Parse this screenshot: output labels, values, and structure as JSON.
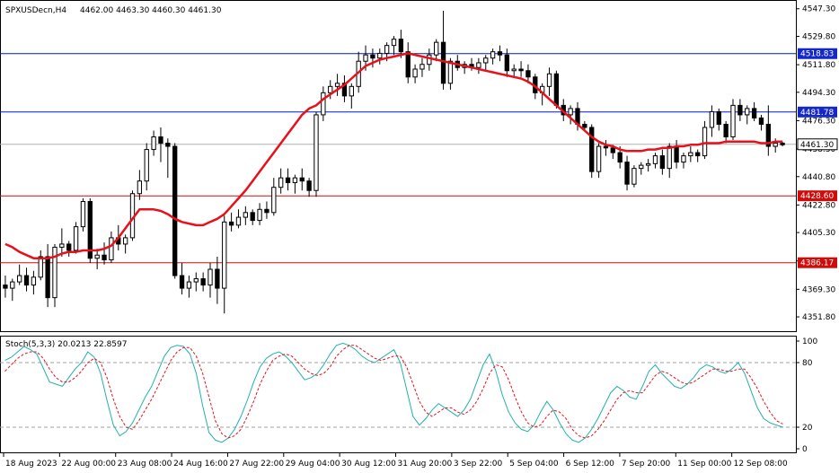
{
  "header": {
    "symbol": "SPXUSDecn,H4",
    "ohlc": "4462.00 4463.30 4460.30 4461.30"
  },
  "stoch_header": "Stoch(5,3,3) 20.0213 22.8597",
  "colors": {
    "background": "#ffffff",
    "candle": "#000000",
    "ma": "#e8101a",
    "blue_line": "#0019c8",
    "red_line": "#d10a0a",
    "current_price_line": "#b0b0b0",
    "stoch_main": "#20b2aa",
    "stoch_signal": "#e8101a",
    "blue_label_bg": "#1428c8",
    "red_label_bg": "#d10a0a"
  },
  "chart_data": [
    {
      "type": "candlestick",
      "title": "SPXUSDecn,H4",
      "ylim": [
        4345,
        4550
      ],
      "y_ticks": [
        "4547.30",
        "4529.80",
        "4511.80",
        "4494.30",
        "4476.30",
        "4458.30",
        "4440.80",
        "4422.80",
        "4405.30",
        "4387.30",
        "4369.30",
        "4351.80"
      ],
      "x_ticks": [
        "18 Aug 2023",
        "22 Aug 00:00",
        "23 Aug 08:00",
        "24 Aug 16:00",
        "27 Aug 22:00",
        "29 Aug 04:00",
        "30 Aug 12:00",
        "31 Aug 20:00",
        "3 Sep 22:00",
        "5 Sep 04:00",
        "6 Sep 12:00",
        "7 Sep 20:00",
        "11 Sep 00:00",
        "12 Sep 08:00"
      ],
      "horizontal_levels": [
        {
          "value": 4518.83,
          "label": "4518.83",
          "color": "blue"
        },
        {
          "value": 4481.78,
          "label": "4481.78",
          "color": "blue"
        },
        {
          "value": 4428.6,
          "label": "4428.60",
          "color": "red"
        },
        {
          "value": 4386.17,
          "label": "4386.17",
          "color": "red"
        }
      ],
      "current_price": {
        "value": 4461.3,
        "label": "4461.30"
      },
      "candles": [
        [
          4372,
          4378,
          4364,
          4370
        ],
        [
          4370,
          4376,
          4362,
          4374
        ],
        [
          4374,
          4385,
          4372,
          4378
        ],
        [
          4378,
          4383,
          4368,
          4372
        ],
        [
          4372,
          4381,
          4366,
          4377
        ],
        [
          4377,
          4394,
          4375,
          4390
        ],
        [
          4390,
          4398,
          4358,
          4364
        ],
        [
          4364,
          4398,
          4358,
          4396
        ],
        [
          4396,
          4408,
          4390,
          4398
        ],
        [
          4398,
          4400,
          4390,
          4394
        ],
        [
          4394,
          4412,
          4392,
          4409
        ],
        [
          4409,
          4427,
          4406,
          4425
        ],
        [
          4425,
          4427,
          4386,
          4389
        ],
        [
          4389,
          4395,
          4382,
          4391
        ],
        [
          4391,
          4399,
          4385,
          4388
        ],
        [
          4388,
          4406,
          4386,
          4402
        ],
        [
          4402,
          4410,
          4394,
          4398
        ],
        [
          4398,
          4404,
          4392,
          4402
        ],
        [
          4402,
          4432,
          4400,
          4430
        ],
        [
          4430,
          4445,
          4426,
          4438
        ],
        [
          4438,
          4462,
          4432,
          4458
        ],
        [
          4458,
          4470,
          4454,
          4466
        ],
        [
          4466,
          4472,
          4450,
          4462
        ],
        [
          4462,
          4465,
          4440,
          4460
        ],
        [
          4460,
          4462,
          4376,
          4378
        ],
        [
          4378,
          4386,
          4366,
          4370
        ],
        [
          4370,
          4378,
          4364,
          4374
        ],
        [
          4374,
          4380,
          4368,
          4376
        ],
        [
          4376,
          4380,
          4368,
          4372
        ],
        [
          4372,
          4386,
          4364,
          4382
        ],
        [
          4382,
          4390,
          4360,
          4370
        ],
        [
          4370,
          4416,
          4354,
          4412
        ],
        [
          4412,
          4418,
          4406,
          4410
        ],
        [
          4410,
          4420,
          4408,
          4415
        ],
        [
          4415,
          4422,
          4410,
          4418
        ],
        [
          4418,
          4420,
          4410,
          4413
        ],
        [
          4413,
          4424,
          4410,
          4420
        ],
        [
          4420,
          4425,
          4414,
          4418
        ],
        [
          4418,
          4440,
          4416,
          4434
        ],
        [
          4434,
          4446,
          4430,
          4440
        ],
        [
          4440,
          4446,
          4432,
          4437
        ],
        [
          4437,
          4442,
          4430,
          4440
        ],
        [
          4440,
          4446,
          4432,
          4438
        ],
        [
          4438,
          4440,
          4428,
          4432
        ],
        [
          4432,
          4482,
          4428,
          4480
        ],
        [
          4480,
          4498,
          4476,
          4494
        ],
        [
          4494,
          4502,
          4490,
          4498
        ],
        [
          4498,
          4506,
          4492,
          4500
        ],
        [
          4500,
          4505,
          4488,
          4492
        ],
        [
          4492,
          4500,
          4484,
          4498
        ],
        [
          4498,
          4520,
          4494,
          4514
        ],
        [
          4514,
          4524,
          4508,
          4518
        ],
        [
          4518,
          4522,
          4510,
          4516
        ],
        [
          4516,
          4522,
          4512,
          4519
        ],
        [
          4519,
          4526,
          4514,
          4524
        ],
        [
          4524,
          4530,
          4518,
          4528
        ],
        [
          4528,
          4534,
          4516,
          4520
        ],
        [
          4520,
          4526,
          4500,
          4504
        ],
        [
          4504,
          4512,
          4500,
          4509
        ],
        [
          4509,
          4516,
          4504,
          4512
        ],
        [
          4512,
          4522,
          4508,
          4518
        ],
        [
          4518,
          4528,
          4514,
          4526
        ],
        [
          4526,
          4546,
          4496,
          4500
        ],
        [
          4500,
          4516,
          4496,
          4514
        ],
        [
          4514,
          4518,
          4508,
          4510
        ],
        [
          4510,
          4514,
          4506,
          4512
        ],
        [
          4512,
          4516,
          4508,
          4510
        ],
        [
          4510,
          4516,
          4506,
          4513
        ],
        [
          4513,
          4518,
          4508,
          4516
        ],
        [
          4516,
          4522,
          4512,
          4520
        ],
        [
          4520,
          4524,
          4514,
          4518
        ],
        [
          4518,
          4522,
          4504,
          4508
        ],
        [
          4508,
          4512,
          4504,
          4509
        ],
        [
          4509,
          4514,
          4504,
          4508
        ],
        [
          4508,
          4512,
          4500,
          4504
        ],
        [
          4504,
          4506,
          4490,
          4494
        ],
        [
          4494,
          4500,
          4486,
          4498
        ],
        [
          4498,
          4510,
          4492,
          4506
        ],
        [
          4506,
          4508,
          4484,
          4486
        ],
        [
          4486,
          4490,
          4476,
          4480
        ],
        [
          4480,
          4486,
          4474,
          4484
        ],
        [
          4484,
          4488,
          4470,
          4474
        ],
        [
          4474,
          4476,
          4470,
          4472
        ],
        [
          4472,
          4474,
          4440,
          4444
        ],
        [
          4444,
          4462,
          4440,
          4460
        ],
        [
          4460,
          4464,
          4454,
          4459
        ],
        [
          4459,
          4461,
          4452,
          4456
        ],
        [
          4456,
          4460,
          4446,
          4450
        ],
        [
          4450,
          4454,
          4432,
          4436
        ],
        [
          4436,
          4448,
          4434,
          4446
        ],
        [
          4446,
          4450,
          4442,
          4448
        ],
        [
          4448,
          4452,
          4444,
          4449
        ],
        [
          4449,
          4456,
          4446,
          4454
        ],
        [
          4454,
          4458,
          4442,
          4446
        ],
        [
          4446,
          4462,
          4440,
          4460
        ],
        [
          4460,
          4464,
          4446,
          4450
        ],
        [
          4450,
          4456,
          4446,
          4454
        ],
        [
          4454,
          4460,
          4450,
          4456
        ],
        [
          4456,
          4458,
          4450,
          4454
        ],
        [
          4454,
          4476,
          4452,
          4472
        ],
        [
          4472,
          4486,
          4466,
          4482
        ],
        [
          4482,
          4484,
          4470,
          4474
        ],
        [
          4474,
          4476,
          4462,
          4466
        ],
        [
          4466,
          4490,
          4464,
          4486
        ],
        [
          4486,
          4490,
          4476,
          4480
        ],
        [
          4480,
          4486,
          4474,
          4484
        ],
        [
          4484,
          4488,
          4476,
          4478
        ],
        [
          4478,
          4480,
          4470,
          4474
        ],
        [
          4474,
          4486,
          4454,
          4460
        ],
        [
          4460,
          4465,
          4456,
          4462
        ],
        [
          4462,
          4463,
          4460,
          4461
        ]
      ],
      "moving_average": [
        4398,
        4396,
        4393,
        4391,
        4389,
        4389,
        4389,
        4390,
        4392,
        4393,
        4393,
        4394,
        4394,
        4394,
        4395,
        4397,
        4402,
        4408,
        4414,
        4420,
        4420,
        4420,
        4419,
        4417,
        4414,
        4412,
        4411,
        4410,
        4410,
        4412,
        4414,
        4417,
        4422,
        4427,
        4432,
        4438,
        4444,
        4450,
        4456,
        4462,
        4468,
        4474,
        4480,
        4484,
        4486,
        4490,
        4493,
        4496,
        4499,
        4503,
        4507,
        4511,
        4513,
        4515,
        4516,
        4517,
        4518,
        4519,
        4518,
        4517,
        4516,
        4515,
        4514,
        4513,
        4512,
        4511,
        4510,
        4509,
        4508,
        4507,
        4506,
        4505,
        4504,
        4503,
        4501,
        4498,
        4494,
        4490,
        4486,
        4482,
        4478,
        4474,
        4470,
        4466,
        4463,
        4461,
        4460,
        4458,
        4457,
        4457,
        4457,
        4458,
        4458,
        4459,
        4459,
        4460,
        4460,
        4461,
        4461,
        4462,
        4462,
        4462,
        4463,
        4463,
        4463,
        4463,
        4463,
        4462,
        4462,
        4463,
        4463,
        4463
      ]
    },
    {
      "type": "line",
      "title": "Stoch(5,3,3) 20.0213 22.8597",
      "ylim": [
        0,
        100
      ],
      "y_ticks": [
        "100",
        "80",
        "20",
        "0"
      ],
      "levels": [
        80,
        20
      ],
      "series": [
        {
          "name": "main",
          "values": [
            82,
            85,
            90,
            95,
            92,
            88,
            75,
            62,
            60,
            58,
            66,
            74,
            80,
            90,
            85,
            70,
            45,
            22,
            12,
            16,
            24,
            36,
            48,
            58,
            72,
            86,
            94,
            96,
            95,
            88,
            70,
            40,
            15,
            8,
            6,
            10,
            18,
            30,
            45,
            62,
            76,
            84,
            88,
            90,
            86,
            80,
            72,
            64,
            66,
            70,
            78,
            88,
            96,
            98,
            96,
            92,
            86,
            82,
            80,
            84,
            88,
            92,
            80,
            55,
            30,
            22,
            28,
            36,
            42,
            38,
            34,
            30,
            36,
            46,
            62,
            78,
            88,
            72,
            50,
            34,
            24,
            18,
            16,
            22,
            34,
            44,
            36,
            24,
            14,
            8,
            6,
            10,
            18,
            28,
            40,
            52,
            58,
            54,
            48,
            46,
            58,
            72,
            78,
            70,
            64,
            58,
            56,
            60,
            66,
            74,
            78,
            76,
            72,
            70,
            74,
            80,
            70,
            54,
            38,
            28,
            24,
            22,
            20
          ]
        },
        {
          "name": "signal",
          "values": [
            72,
            78,
            84,
            88,
            90,
            90,
            84,
            74,
            66,
            62,
            62,
            66,
            72,
            80,
            84,
            80,
            66,
            46,
            30,
            20,
            18,
            26,
            36,
            46,
            58,
            70,
            82,
            90,
            94,
            94,
            86,
            70,
            48,
            26,
            14,
            10,
            12,
            18,
            30,
            44,
            60,
            72,
            82,
            86,
            88,
            86,
            80,
            74,
            70,
            68,
            70,
            76,
            86,
            92,
            96,
            96,
            92,
            88,
            84,
            82,
            84,
            86,
            86,
            76,
            60,
            44,
            34,
            30,
            34,
            38,
            38,
            34,
            32,
            36,
            44,
            56,
            70,
            78,
            76,
            64,
            48,
            34,
            24,
            20,
            22,
            30,
            36,
            34,
            28,
            18,
            12,
            10,
            12,
            18,
            26,
            36,
            46,
            52,
            54,
            52,
            52,
            60,
            68,
            72,
            70,
            66,
            62,
            60,
            62,
            66,
            70,
            74,
            74,
            72,
            72,
            74,
            74,
            66,
            56,
            44,
            34,
            26,
            23
          ]
        }
      ]
    }
  ]
}
